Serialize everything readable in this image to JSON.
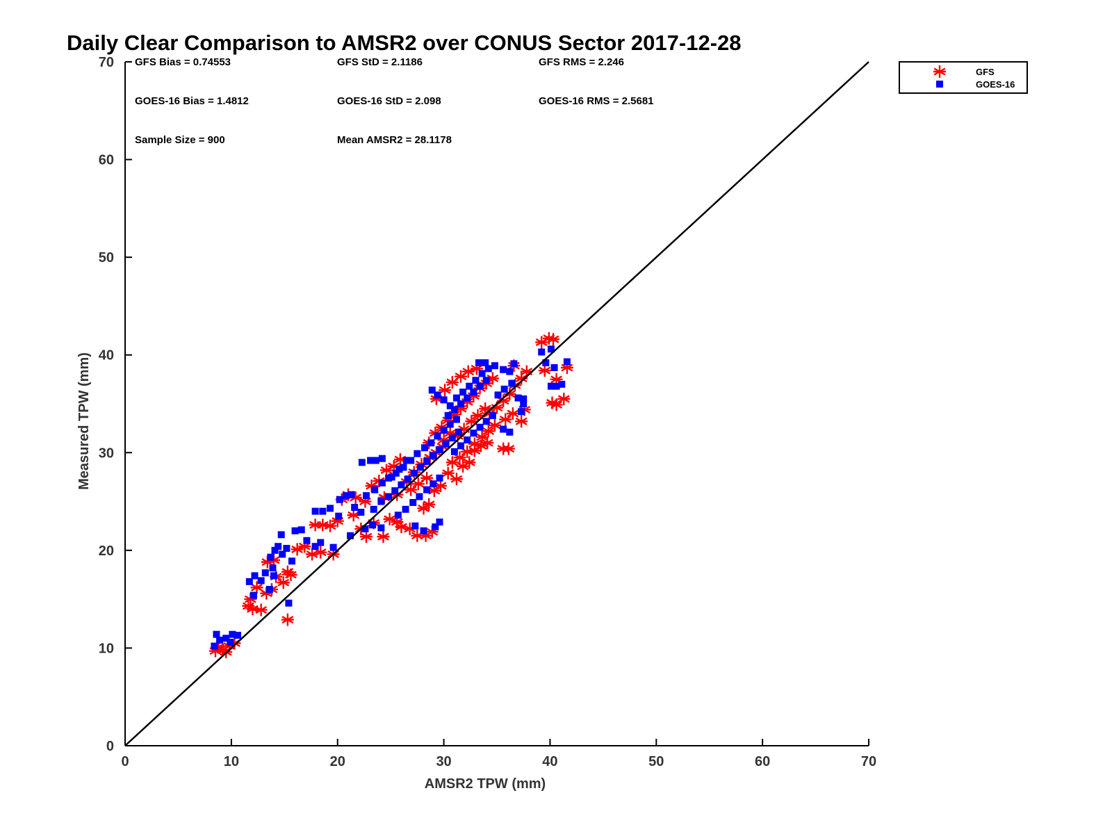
{
  "chart_data": {
    "type": "scatter",
    "title": "Daily Clear Comparison to AMSR2 over CONUS Sector 2017-12-28",
    "xlabel": "AMSR2 TPW (mm)",
    "ylabel": "Measured TPW (mm)",
    "xlim": [
      0,
      70
    ],
    "ylim": [
      0,
      70
    ],
    "xticks": [
      0,
      10,
      20,
      30,
      40,
      50,
      60,
      70
    ],
    "yticks": [
      0,
      10,
      20,
      30,
      40,
      50,
      60,
      70
    ],
    "grid": false,
    "legend_position": "top-right outside",
    "reference_line": {
      "x": [
        0,
        70
      ],
      "y": [
        0,
        70
      ]
    },
    "stats": [
      [
        "GFS Bias = 0.74553",
        "GFS StD = 2.1186",
        "GFS RMS = 2.246"
      ],
      [
        "GOES-16 Bias = 1.4812",
        "GOES-16 StD = 2.098",
        "GOES-16 RMS = 2.5681"
      ],
      [
        "Sample Size = 900",
        "Mean AMSR2 = 28.1178"
      ]
    ],
    "series": [
      {
        "name": "GFS",
        "marker": "asterisk",
        "color": "#ff0000",
        "points": [
          [
            8.5,
            9.7
          ],
          [
            9.2,
            9.8
          ],
          [
            9.8,
            10.2
          ],
          [
            10.3,
            10.5
          ],
          [
            9.5,
            9.6
          ],
          [
            8.8,
            10.1
          ],
          [
            11.6,
            14.3
          ],
          [
            12.0,
            14.0
          ],
          [
            12.8,
            13.9
          ],
          [
            11.8,
            15.0
          ],
          [
            12.4,
            16.2
          ],
          [
            13.3,
            15.6
          ],
          [
            13.8,
            16.0
          ],
          [
            13.4,
            18.8
          ],
          [
            14.0,
            19.0
          ],
          [
            14.2,
            17.3
          ],
          [
            14.9,
            16.7
          ],
          [
            15.3,
            17.8
          ],
          [
            15.6,
            17.5
          ],
          [
            15.3,
            12.9
          ],
          [
            16.2,
            20.1
          ],
          [
            16.9,
            20.4
          ],
          [
            17.6,
            19.6
          ],
          [
            18.4,
            19.8
          ],
          [
            19.6,
            19.6
          ],
          [
            17.9,
            22.6
          ],
          [
            18.6,
            22.6
          ],
          [
            19.3,
            22.5
          ],
          [
            20.0,
            23.0
          ],
          [
            20.4,
            25.2
          ],
          [
            21.0,
            25.7
          ],
          [
            21.7,
            25.4
          ],
          [
            21.5,
            23.6
          ],
          [
            22.2,
            22.2
          ],
          [
            22.7,
            21.4
          ],
          [
            23.4,
            22.8
          ],
          [
            24.3,
            21.4
          ],
          [
            24.9,
            23.2
          ],
          [
            25.6,
            22.9
          ],
          [
            26.0,
            22.4
          ],
          [
            26.8,
            22.2
          ],
          [
            27.5,
            21.5
          ],
          [
            28.3,
            21.5
          ],
          [
            28.9,
            21.9
          ],
          [
            28.1,
            24.3
          ],
          [
            28.6,
            24.7
          ],
          [
            22.6,
            25.0
          ],
          [
            23.2,
            26.6
          ],
          [
            23.9,
            27.1
          ],
          [
            24.6,
            28.2
          ],
          [
            25.3,
            28.6
          ],
          [
            25.9,
            29.3
          ],
          [
            24.4,
            25.4
          ],
          [
            25.6,
            25.7
          ],
          [
            26.5,
            27.0
          ],
          [
            27.2,
            28.0
          ],
          [
            27.9,
            28.8
          ],
          [
            28.7,
            29.5
          ],
          [
            29.3,
            30.0
          ],
          [
            29.9,
            30.6
          ],
          [
            26.9,
            26.2
          ],
          [
            27.6,
            26.8
          ],
          [
            28.4,
            27.4
          ],
          [
            29.1,
            26.1
          ],
          [
            29.7,
            26.6
          ],
          [
            30.4,
            27.9
          ],
          [
            31.2,
            27.3
          ],
          [
            31.8,
            28.6
          ],
          [
            32.4,
            29.0
          ],
          [
            32.9,
            30.2
          ],
          [
            33.5,
            30.7
          ],
          [
            34.1,
            31.0
          ],
          [
            28.6,
            31.0
          ],
          [
            29.2,
            32.0
          ],
          [
            29.8,
            32.6
          ],
          [
            30.4,
            33.3
          ],
          [
            31.0,
            33.9
          ],
          [
            31.6,
            34.5
          ],
          [
            32.2,
            35.2
          ],
          [
            32.8,
            35.8
          ],
          [
            33.4,
            36.6
          ],
          [
            34.0,
            37.1
          ],
          [
            34.6,
            37.6
          ],
          [
            29.3,
            35.5
          ],
          [
            30.1,
            36.4
          ],
          [
            30.8,
            37.2
          ],
          [
            31.6,
            37.8
          ],
          [
            32.3,
            38.3
          ],
          [
            33.1,
            38.6
          ],
          [
            34.3,
            34.0
          ],
          [
            35.0,
            34.6
          ],
          [
            35.6,
            35.3
          ],
          [
            36.2,
            36.0
          ],
          [
            36.7,
            36.9
          ],
          [
            37.3,
            37.6
          ],
          [
            37.8,
            38.3
          ],
          [
            36.6,
            38.9
          ],
          [
            35.8,
            33.4
          ],
          [
            36.5,
            34.0
          ],
          [
            37.3,
            33.2
          ],
          [
            37.6,
            34.4
          ],
          [
            35.6,
            30.4
          ],
          [
            36.1,
            30.4
          ],
          [
            30.8,
            29.0
          ],
          [
            31.5,
            29.5
          ],
          [
            32.2,
            30.1
          ],
          [
            32.9,
            30.9
          ],
          [
            33.6,
            31.6
          ],
          [
            34.2,
            32.2
          ],
          [
            34.8,
            32.8
          ],
          [
            30.0,
            31.3
          ],
          [
            30.6,
            32.0
          ],
          [
            31.3,
            31.7
          ],
          [
            31.9,
            32.4
          ],
          [
            32.6,
            33.2
          ],
          [
            33.2,
            33.8
          ],
          [
            33.9,
            34.5
          ],
          [
            39.2,
            41.3
          ],
          [
            39.9,
            41.7
          ],
          [
            40.3,
            41.6
          ],
          [
            39.5,
            38.4
          ],
          [
            40.6,
            37.5
          ],
          [
            41.6,
            38.7
          ],
          [
            40.2,
            35.1
          ],
          [
            40.6,
            34.9
          ],
          [
            41.3,
            35.5
          ]
        ]
      },
      {
        "name": "GOES-16",
        "marker": "square",
        "color": "#0000ff",
        "points": [
          [
            8.4,
            10.2
          ],
          [
            8.9,
            10.8
          ],
          [
            8.6,
            11.4
          ],
          [
            9.5,
            11.0
          ],
          [
            10.1,
            11.4
          ],
          [
            10.6,
            11.3
          ],
          [
            9.9,
            10.6
          ],
          [
            11.7,
            16.8
          ],
          [
            12.2,
            17.4
          ],
          [
            12.8,
            16.9
          ],
          [
            13.2,
            17.7
          ],
          [
            12.1,
            15.4
          ],
          [
            13.6,
            16.0
          ],
          [
            14.0,
            17.4
          ],
          [
            13.7,
            19.3
          ],
          [
            14.1,
            20.0
          ],
          [
            14.4,
            20.4
          ],
          [
            14.8,
            19.6
          ],
          [
            14.7,
            21.6
          ],
          [
            15.2,
            20.2
          ],
          [
            13.9,
            18.2
          ],
          [
            15.4,
            14.6
          ],
          [
            15.7,
            18.9
          ],
          [
            16.0,
            22.0
          ],
          [
            16.6,
            22.1
          ],
          [
            17.1,
            21.0
          ],
          [
            17.9,
            20.4
          ],
          [
            18.4,
            20.8
          ],
          [
            17.9,
            24.0
          ],
          [
            18.6,
            24.0
          ],
          [
            19.3,
            24.3
          ],
          [
            19.6,
            20.3
          ],
          [
            20.2,
            25.2
          ],
          [
            20.8,
            25.6
          ],
          [
            21.3,
            25.7
          ],
          [
            20.1,
            23.5
          ],
          [
            21.2,
            21.5
          ],
          [
            21.6,
            24.4
          ],
          [
            22.2,
            23.9
          ],
          [
            22.6,
            22.2
          ],
          [
            23.3,
            22.6
          ],
          [
            24.1,
            22.3
          ],
          [
            22.3,
            29.0
          ],
          [
            23.1,
            29.2
          ],
          [
            23.6,
            29.2
          ],
          [
            24.2,
            29.4
          ],
          [
            25.1,
            27.5
          ],
          [
            25.8,
            28.3
          ],
          [
            26.5,
            29.2
          ],
          [
            22.7,
            25.6
          ],
          [
            23.5,
            26.2
          ],
          [
            24.2,
            26.9
          ],
          [
            24.8,
            27.4
          ],
          [
            25.5,
            27.9
          ],
          [
            26.2,
            28.5
          ],
          [
            26.9,
            29.2
          ],
          [
            27.5,
            29.9
          ],
          [
            28.2,
            30.5
          ],
          [
            28.8,
            31.0
          ],
          [
            29.4,
            31.7
          ],
          [
            30.0,
            32.3
          ],
          [
            30.6,
            32.9
          ],
          [
            31.2,
            33.4
          ],
          [
            23.4,
            24.2
          ],
          [
            24.1,
            25.0
          ],
          [
            24.8,
            25.5
          ],
          [
            25.4,
            26.1
          ],
          [
            26.0,
            26.7
          ],
          [
            26.6,
            27.3
          ],
          [
            27.2,
            27.9
          ],
          [
            27.8,
            28.5
          ],
          [
            28.4,
            29.1
          ],
          [
            29.0,
            29.7
          ],
          [
            29.6,
            30.3
          ],
          [
            30.2,
            30.9
          ],
          [
            30.8,
            31.5
          ],
          [
            31.4,
            32.1
          ],
          [
            25.7,
            23.6
          ],
          [
            26.4,
            24.2
          ],
          [
            27.1,
            24.9
          ],
          [
            27.7,
            25.5
          ],
          [
            28.4,
            26.2
          ],
          [
            29.0,
            26.8
          ],
          [
            29.6,
            27.4
          ],
          [
            27.3,
            22.5
          ],
          [
            28.1,
            22.0
          ],
          [
            29.2,
            22.4
          ],
          [
            29.6,
            22.9
          ],
          [
            28.9,
            36.4
          ],
          [
            29.4,
            35.9
          ],
          [
            30.0,
            35.4
          ],
          [
            30.6,
            34.8
          ],
          [
            31.2,
            35.6
          ],
          [
            31.8,
            36.2
          ],
          [
            32.4,
            36.8
          ],
          [
            33.0,
            37.4
          ],
          [
            33.6,
            38.1
          ],
          [
            34.2,
            38.6
          ],
          [
            34.8,
            38.9
          ],
          [
            33.3,
            39.2
          ],
          [
            33.9,
            39.2
          ],
          [
            35.6,
            38.5
          ],
          [
            36.2,
            38.3
          ],
          [
            36.6,
            39.1
          ],
          [
            35.1,
            35.9
          ],
          [
            35.7,
            36.5
          ],
          [
            36.4,
            37.1
          ],
          [
            37.0,
            35.6
          ],
          [
            37.5,
            35.5
          ],
          [
            37.5,
            35.0
          ],
          [
            35.6,
            32.4
          ],
          [
            36.2,
            32.1
          ],
          [
            37.3,
            34.2
          ],
          [
            31.0,
            30.1
          ],
          [
            31.6,
            30.7
          ],
          [
            32.2,
            31.3
          ],
          [
            32.8,
            32.0
          ],
          [
            33.4,
            32.6
          ],
          [
            34.0,
            33.2
          ],
          [
            34.6,
            33.8
          ],
          [
            30.4,
            33.8
          ],
          [
            31.0,
            34.4
          ],
          [
            31.6,
            35.0
          ],
          [
            32.2,
            35.6
          ],
          [
            32.8,
            36.2
          ],
          [
            33.4,
            36.8
          ],
          [
            34.0,
            37.4
          ],
          [
            39.2,
            40.3
          ],
          [
            39.6,
            39.2
          ],
          [
            40.1,
            40.6
          ],
          [
            40.4,
            38.7
          ],
          [
            40.1,
            36.8
          ],
          [
            40.6,
            36.8
          ],
          [
            41.1,
            37.0
          ],
          [
            41.6,
            39.3
          ]
        ]
      }
    ]
  }
}
